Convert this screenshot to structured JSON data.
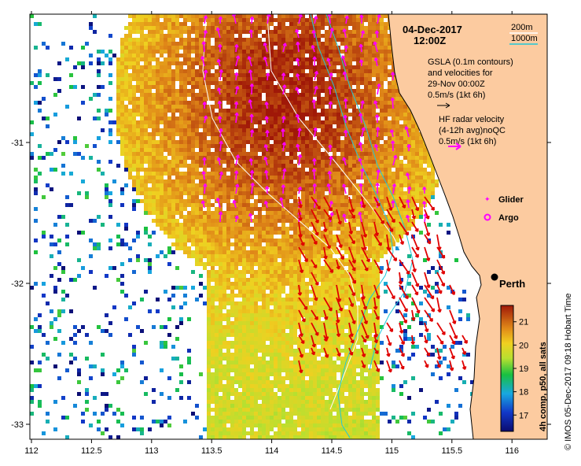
{
  "map": {
    "date": "04-Dec-2017",
    "time": "12:00Z",
    "contour_legend": [
      "200m",
      "1000m"
    ],
    "gsla_note": [
      "GSLA (0.1m contours)",
      "and velocities for",
      "29-Nov 00:00Z",
      "0.5m/s (1kt 6h)"
    ],
    "hf_note": [
      "HF radar velocity",
      "(4-12h avg)noQC",
      "0.5m/s (1kt 6h)"
    ],
    "legend_glider": "Glider",
    "legend_argo": "Argo",
    "city": "Perth",
    "side_label": "© IMOS 05-Dec-2017 09:18 Hobart Time",
    "x_ticks": [
      "112",
      "112.5",
      "113",
      "113.5",
      "114",
      "114.5",
      "115",
      "115.5",
      "116"
    ],
    "y_ticks": [
      "-31",
      "-32",
      "-33"
    ],
    "colorbar": {
      "label": "4h comp, p50, all sats",
      "ticks": [
        "21",
        "20",
        "19",
        "18",
        "17"
      ],
      "range": [
        16.3,
        21.7
      ]
    },
    "colors": {
      "land": "#fccba0",
      "hf_arrow": "#e00000",
      "gsla_arrow": "#ff00ff",
      "contour_200m": "#ffffff",
      "contour_1000m": "#20c8d8"
    }
  }
}
